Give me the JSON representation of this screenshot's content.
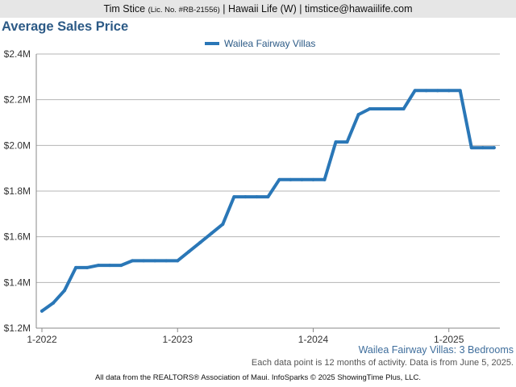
{
  "header": {
    "agent_name": "Tim Stice",
    "license": "(Lic. No. #RB-21556)",
    "company_contact": "| Hawaii Life (W) | timstice@hawaiilife.com"
  },
  "chart_data": {
    "type": "line",
    "title": "Average Sales Price",
    "subtitle": "Wailea Fairway Villas: 3 Bedrooms",
    "note": "Each data point is 12 months of activity. Data is from June 5, 2025.",
    "xlabel": "",
    "ylabel": "",
    "legend_position": "top-center",
    "grid": true,
    "line_color": "#2a77b7",
    "ylim": [
      1200000,
      2400000
    ],
    "y_ticks": [
      1200000,
      1400000,
      1600000,
      1800000,
      2000000,
      2200000,
      2400000
    ],
    "y_tick_labels": [
      "$1.2M",
      "$1.4M",
      "$1.6M",
      "$1.8M",
      "$2.0M",
      "$2.2M",
      "$2.4M"
    ],
    "x_tick_labels": [
      "1-2022",
      "1-2023",
      "1-2024",
      "1-2025"
    ],
    "x_tick_months": [
      0,
      12,
      24,
      36
    ],
    "x_range": [
      "1-2022",
      "5-2025"
    ],
    "series": [
      {
        "name": "Wailea Fairway Villas",
        "points": [
          [
            "1-2022",
            1275000
          ],
          [
            "2-2022",
            1310000
          ],
          [
            "3-2022",
            1365000
          ],
          [
            "4-2022",
            1465000
          ],
          [
            "5-2022",
            1465000
          ],
          [
            "6-2022",
            1475000
          ],
          [
            "7-2022",
            1475000
          ],
          [
            "8-2022",
            1475000
          ],
          [
            "9-2022",
            1495000
          ],
          [
            "10-2022",
            1495000
          ],
          [
            "11-2022",
            1495000
          ],
          [
            "12-2022",
            1495000
          ],
          [
            "1-2023",
            1495000
          ],
          [
            "2-2023",
            1535000
          ],
          [
            "3-2023",
            1575000
          ],
          [
            "4-2023",
            1615000
          ],
          [
            "5-2023",
            1655000
          ],
          [
            "6-2023",
            1775000
          ],
          [
            "7-2023",
            1775000
          ],
          [
            "8-2023",
            1775000
          ],
          [
            "9-2023",
            1775000
          ],
          [
            "10-2023",
            1850000
          ],
          [
            "11-2023",
            1850000
          ],
          [
            "12-2023",
            1850000
          ],
          [
            "1-2024",
            1850000
          ],
          [
            "2-2024",
            1850000
          ],
          [
            "3-2024",
            2015000
          ],
          [
            "4-2024",
            2015000
          ],
          [
            "5-2024",
            2135000
          ],
          [
            "6-2024",
            2160000
          ],
          [
            "7-2024",
            2160000
          ],
          [
            "8-2024",
            2160000
          ],
          [
            "9-2024",
            2160000
          ],
          [
            "10-2024",
            2240000
          ],
          [
            "11-2024",
            2240000
          ],
          [
            "12-2024",
            2240000
          ],
          [
            "1-2025",
            2240000
          ],
          [
            "2-2025",
            2240000
          ],
          [
            "3-2025",
            1990000
          ],
          [
            "4-2025",
            1990000
          ],
          [
            "5-2025",
            1990000
          ]
        ]
      }
    ]
  },
  "footer": {
    "text": "All data from the REALTORS® Association of Maui. InfoSparks © 2025 ShowingTime Plus, LLC."
  }
}
